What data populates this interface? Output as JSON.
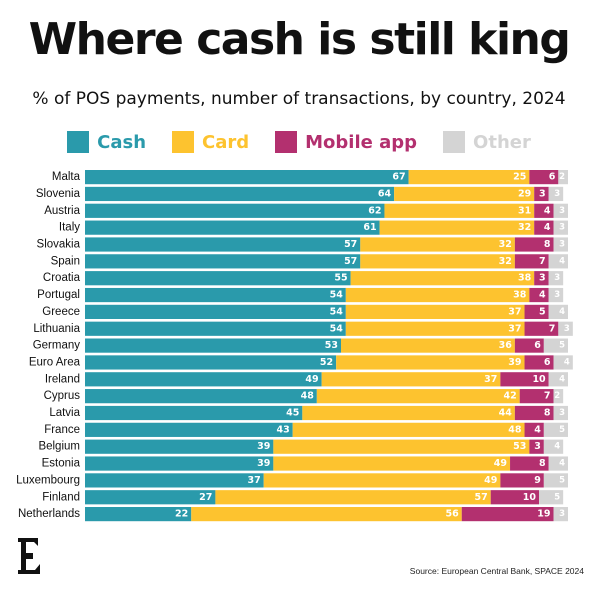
{
  "title": "Where cash is still king",
  "subtitle": "% of POS payments, number of transactions, by country, 2024",
  "source": "Source: European Central Bank, SPACE 2024",
  "legend": [
    {
      "label": "Cash",
      "color": "#2a9aab"
    },
    {
      "label": "Card",
      "color": "#fdc32f"
    },
    {
      "label": "Mobile app",
      "color": "#b3306f"
    },
    {
      "label": "Other",
      "color": "#d4d4d4"
    }
  ],
  "chart_data": {
    "type": "bar",
    "orientation": "horizontal",
    "stacked": true,
    "title": "Where cash is still king",
    "subtitle": "% of POS payments, number of transactions, by country, 2024",
    "categories": [
      "Malta",
      "Slovenia",
      "Austria",
      "Italy",
      "Slovakia",
      "Spain",
      "Croatia",
      "Portugal",
      "Greece",
      "Lithuania",
      "Germany",
      "Euro Area",
      "Ireland",
      "Cyprus",
      "Latvia",
      "France",
      "Belgium",
      "Estonia",
      "Luxembourg",
      "Finland",
      "Netherlands"
    ],
    "series": [
      {
        "name": "Cash",
        "color": "#2a9aab",
        "values": [
          67,
          64,
          62,
          61,
          57,
          57,
          55,
          54,
          54,
          54,
          53,
          52,
          49,
          48,
          45,
          43,
          39,
          39,
          37,
          27,
          22
        ]
      },
      {
        "name": "Card",
        "color": "#fdc32f",
        "values": [
          25,
          29,
          31,
          32,
          32,
          32,
          38,
          38,
          37,
          37,
          36,
          39,
          37,
          42,
          44,
          48,
          53,
          49,
          49,
          57,
          56
        ]
      },
      {
        "name": "Mobile app",
        "color": "#b3306f",
        "values": [
          6,
          3,
          4,
          4,
          8,
          7,
          3,
          4,
          5,
          7,
          6,
          6,
          10,
          7,
          8,
          4,
          3,
          8,
          9,
          10,
          19
        ]
      },
      {
        "name": "Other",
        "color": "#d4d4d4",
        "values": [
          2,
          3,
          3,
          3,
          3,
          4,
          3,
          3,
          4,
          3,
          5,
          4,
          4,
          2,
          3,
          5,
          4,
          4,
          5,
          5,
          3
        ]
      }
    ],
    "xlim": [
      0,
      100
    ],
    "legend_position": "top"
  }
}
